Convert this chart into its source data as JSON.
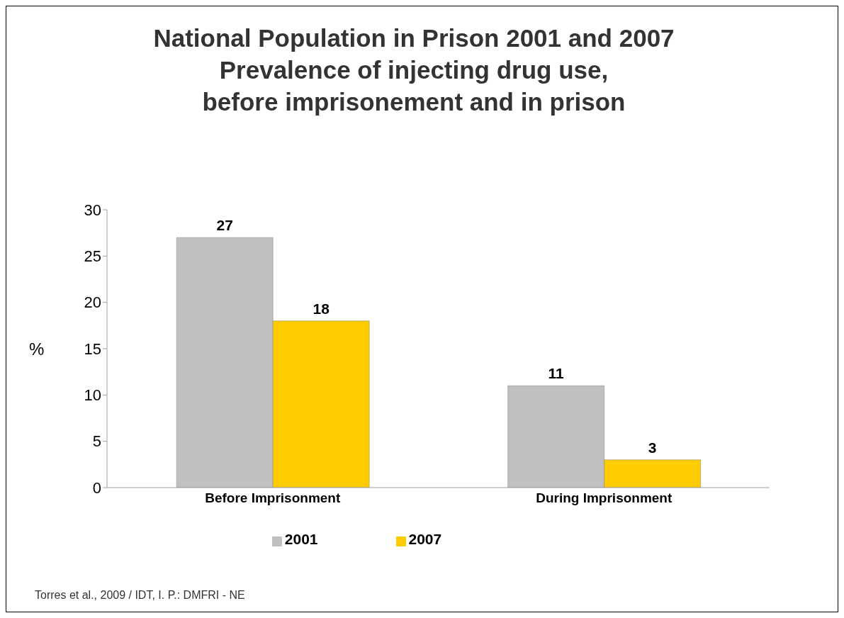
{
  "chart_data": {
    "type": "bar",
    "title": "National Population in Prison 2001 and 2007\nPrevalence of injecting drug use,\nbefore imprisonement and in prison",
    "ylabel": "%",
    "categories": [
      "Before Imprisonment",
      "During Imprisonment"
    ],
    "series": [
      {
        "name": "2001",
        "color": "#c0c0c0",
        "values": [
          27,
          11
        ]
      },
      {
        "name": "2007",
        "color": "#ffcc00",
        "values": [
          18,
          3
        ]
      }
    ],
    "ylim": [
      0,
      30
    ],
    "yticks": [
      0,
      5,
      10,
      15,
      20,
      25,
      30
    ],
    "grid": false,
    "legend": "bottom",
    "data_labels": true,
    "annotations": [
      "Torres et al., 2009 /  IDT, I. P.: DMFRI - NE"
    ]
  }
}
